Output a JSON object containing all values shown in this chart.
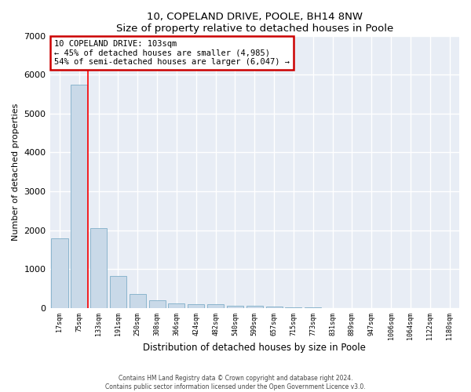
{
  "title1": "10, COPELAND DRIVE, POOLE, BH14 8NW",
  "title2": "Size of property relative to detached houses in Poole",
  "xlabel": "Distribution of detached houses by size in Poole",
  "ylabel": "Number of detached properties",
  "bar_labels": [
    "17sqm",
    "75sqm",
    "133sqm",
    "191sqm",
    "250sqm",
    "308sqm",
    "366sqm",
    "424sqm",
    "482sqm",
    "540sqm",
    "599sqm",
    "657sqm",
    "715sqm",
    "773sqm",
    "831sqm",
    "889sqm",
    "947sqm",
    "1006sqm",
    "1064sqm",
    "1122sqm",
    "1180sqm"
  ],
  "bar_values": [
    1800,
    5750,
    2050,
    820,
    360,
    200,
    120,
    100,
    100,
    60,
    50,
    30,
    15,
    10,
    5,
    5,
    3,
    2,
    1,
    1,
    1
  ],
  "bar_color": "#c9d9e8",
  "bar_edge_color": "#7faec8",
  "red_line_x": 1.45,
  "annotation_text": "10 COPELAND DRIVE: 103sqm\n← 45% of detached houses are smaller (4,985)\n54% of semi-detached houses are larger (6,047) →",
  "annotation_box_facecolor": "#ffffff",
  "annotation_box_edgecolor": "#cc0000",
  "ylim": [
    0,
    7000
  ],
  "yticks": [
    0,
    1000,
    2000,
    3000,
    4000,
    5000,
    6000,
    7000
  ],
  "background_color": "#e8edf5",
  "grid_color": "#ffffff",
  "footer1": "Contains HM Land Registry data © Crown copyright and database right 2024.",
  "footer2": "Contains public sector information licensed under the Open Government Licence v3.0."
}
